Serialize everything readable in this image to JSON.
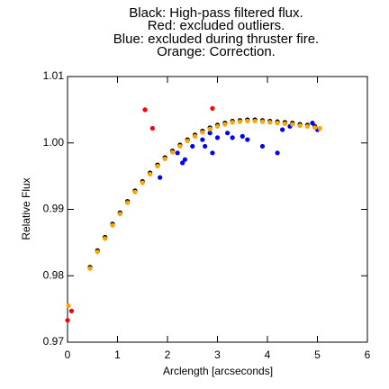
{
  "chart_data": {
    "type": "scatter",
    "title": [
      "Black: High-pass filtered flux.",
      "Red: excluded outliers.",
      "Blue: excluded during thruster fire.",
      "Orange: Correction."
    ],
    "xlabel": "Arclength [arcseconds]",
    "ylabel": "Relative Flux",
    "xlim": [
      0,
      6
    ],
    "xticks": [
      0,
      1,
      2,
      3,
      4,
      5,
      6
    ],
    "ylim": [
      0.97,
      1.01
    ],
    "yticks": [
      0.97,
      0.98,
      0.99,
      {
        "value": 1,
        "label": "1.00"
      },
      1.01
    ],
    "series": [
      {
        "color": "#000000",
        "x": [
          0.45,
          0.6,
          0.75,
          0.9,
          1.05,
          1.2,
          1.35,
          1.5,
          1.65,
          1.8,
          1.95,
          2.1,
          2.25,
          2.4,
          2.55,
          2.7,
          2.85,
          3.0,
          3.15,
          3.3,
          3.45,
          3.6,
          3.75,
          3.9,
          4.05,
          4.2,
          4.35,
          4.5,
          4.65,
          4.8,
          4.95
        ],
        "values": [
          0.9813,
          0.9838,
          0.9858,
          0.9878,
          0.9895,
          0.9912,
          0.9928,
          0.9942,
          0.9955,
          0.9967,
          0.9978,
          0.9988,
          0.9997,
          1.0005,
          1.0012,
          1.0018,
          1.0023,
          1.0027,
          1.003,
          1.0033,
          1.0034,
          1.0035,
          1.0035,
          1.0034,
          1.0033,
          1.0032,
          1.0031,
          1.003,
          1.0028,
          1.0027,
          1.0025
        ]
      },
      {
        "color": "#0000ff",
        "x": [
          1.85,
          2.2,
          2.3,
          2.35,
          2.5,
          2.7,
          2.75,
          2.85,
          2.9,
          3.0,
          3.2,
          3.3,
          3.5,
          3.6,
          3.9,
          4.2,
          4.3,
          4.45,
          4.9,
          5.0
        ],
        "values": [
          0.9948,
          0.9985,
          0.997,
          0.9975,
          0.9995,
          1.0005,
          0.9995,
          1.0015,
          0.9985,
          1.0008,
          1.0015,
          1.0008,
          1.001,
          1.0005,
          0.9995,
          0.9985,
          1.002,
          1.0025,
          1.003,
          1.002
        ]
      },
      {
        "color": "#ff0000",
        "x": [
          0,
          0.08,
          1.55,
          1.7,
          2.9
        ],
        "values": [
          0.9733,
          0.9747,
          1.005,
          1.0022,
          1.0052
        ]
      },
      {
        "color": "#ffa500",
        "x": [
          0.02,
          0.45,
          0.6,
          0.75,
          0.9,
          1.05,
          1.2,
          1.35,
          1.5,
          1.65,
          1.8,
          1.95,
          2.1,
          2.25,
          2.4,
          2.55,
          2.7,
          2.85,
          3.0,
          3.15,
          3.3,
          3.45,
          3.6,
          3.75,
          3.9,
          4.05,
          4.2,
          4.35,
          4.5,
          4.65,
          4.8,
          4.95,
          5.05
        ],
        "values": [
          0.9755,
          0.9811,
          0.9836,
          0.9856,
          0.9876,
          0.9893,
          0.991,
          0.9926,
          0.994,
          0.9953,
          0.9965,
          0.9976,
          0.9986,
          0.9995,
          1.0003,
          1.001,
          1.0016,
          1.0021,
          1.0025,
          1.0028,
          1.0031,
          1.0032,
          1.0033,
          1.0033,
          1.0032,
          1.0031,
          1.003,
          1.0029,
          1.0028,
          1.0026,
          1.0025,
          1.0023,
          1.0022
        ]
      }
    ]
  }
}
